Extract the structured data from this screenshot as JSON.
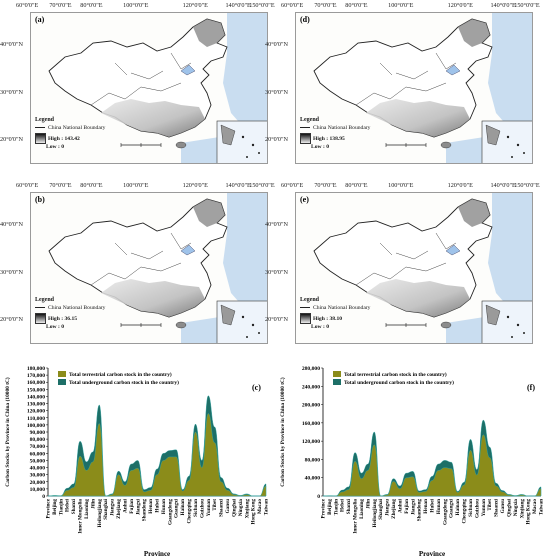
{
  "maps": [
    {
      "label": "(a)",
      "legend_title": "Legend",
      "boundary": "China National Boundary",
      "high": "High : 143.42",
      "low": "Low : 0"
    },
    {
      "label": "(d)",
      "legend_title": "Legend",
      "boundary": "China National Boundary",
      "high": "High : 138.95",
      "low": "Low : 0"
    },
    {
      "label": "(b)",
      "legend_title": "Legend",
      "boundary": "China National Boundary",
      "high": "High : 36.15",
      "low": "Low : 0"
    },
    {
      "label": "(e)",
      "legend_title": "Legend",
      "boundary": "China National Boundary",
      "high": "High : 38.10",
      "low": "Low : 0"
    }
  ],
  "map_axes": {
    "top": [
      "60°0'0\"E",
      "70°0'0\"E",
      "80°0'0\"E",
      "100°0'0\"E",
      "120°0'0\"E",
      "140°0'0\"E",
      "150°0'0\"E"
    ],
    "left": [
      "40°0'0\"N",
      "30°0'0\"N",
      "20°0'0\"N"
    ]
  },
  "colors": {
    "terrestrial": "#8b8c1a",
    "underground": "#1d6f67",
    "sea": "#c9ddf0"
  },
  "chart_data": [
    {
      "type": "area",
      "label": "(c)",
      "xlabel": "Province",
      "ylabel": "Carbon Stocks by Province in China (10000 tC)",
      "ylim": [
        0,
        180000
      ],
      "yticks": [
        "0",
        "10,000",
        "20,000",
        "30,000",
        "40,000",
        "50,000",
        "60,000",
        "70,000",
        "80,000",
        "90,000",
        "100,000",
        "110,000",
        "120,000",
        "130,000",
        "140,000",
        "150,000",
        "160,000",
        "170,000",
        "180,000"
      ],
      "categories": [
        "Province",
        "Beijing",
        "Tianjin",
        "Hebei",
        "Shanxi",
        "Inner Mongolia",
        "Liaoning",
        "Jilin",
        "Heilongjiang",
        "Shanghai",
        "Jiangsu",
        "Zhejiang",
        "Anhui",
        "Fujian",
        "Jiangxi",
        "Shandong",
        "Henan",
        "Hubei",
        "Hunan",
        "Guangdong",
        "Guangxi",
        "Hainan",
        "Chongqing",
        "Sichuan",
        "Guizhou",
        "Yunnan",
        "Tibet",
        "Shaanxi",
        "Gansu",
        "Qinghai",
        "Ningxia",
        "Xinjiang",
        "Hong Kong",
        "Macao",
        "Taiwan"
      ],
      "series": [
        {
          "name": "Total terrestrial carbon stock in the country)",
          "values": [
            0,
            500,
            300,
            8000,
            12000,
            56000,
            36000,
            48000,
            102000,
            200,
            2000,
            30000,
            15000,
            36000,
            39000,
            6000,
            8000,
            30000,
            50000,
            55000,
            55000,
            7000,
            22000,
            90000,
            40000,
            116000,
            75000,
            20000,
            8000,
            2000,
            600,
            2000,
            50,
            30,
            14000
          ]
        },
        {
          "name": "Total underground carbon stock in the country)",
          "values": [
            0,
            800,
            500,
            11000,
            17000,
            77000,
            48000,
            62000,
            128000,
            300,
            3000,
            35000,
            20000,
            45000,
            50000,
            9000,
            12000,
            38000,
            60000,
            64000,
            65000,
            9000,
            28000,
            101000,
            50000,
            141000,
            97000,
            26000,
            11000,
            3000,
            900,
            3000,
            80,
            50,
            17000
          ]
        }
      ]
    },
    {
      "type": "area",
      "label": "(f)",
      "xlabel": "Province",
      "ylabel": "Carbon Stocks by Province in China (10000 tC)",
      "ylim": [
        0,
        280000
      ],
      "yticks": [
        "0",
        "40,000",
        "80,000",
        "120,000",
        "160,000",
        "200,000",
        "240,000",
        "280,000"
      ],
      "categories": [
        "Province",
        "Beijing",
        "Tianjin",
        "Hebei",
        "Shanxi",
        "Inner Mongolia",
        "Liaoning",
        "Jilin",
        "Heilongjiang",
        "Shanghai",
        "Jiangsu",
        "Zhejiang",
        "Anhui",
        "Fujian",
        "Jiangxi",
        "Shandong",
        "Henan",
        "Hubei",
        "Hunan",
        "Guangdong",
        "Guangxi",
        "Hainan",
        "Chongqing",
        "Sichuan",
        "Guizhou",
        "Yunnan",
        "Tibet",
        "Shaanxi",
        "Gansu",
        "Qinghai",
        "Ningxia",
        "Xinjiang",
        "Hong Kong",
        "Macao",
        "Taiwan"
      ],
      "series": [
        {
          "name": "Total terrestrial carbon stock in the country)",
          "values": [
            0,
            500,
            300,
            9000,
            14000,
            76000,
            38000,
            56000,
            112000,
            200,
            2500,
            32000,
            16000,
            40000,
            42000,
            8000,
            10000,
            34000,
            56000,
            62000,
            60000,
            8000,
            24000,
            100000,
            46000,
            134000,
            84000,
            22000,
            9000,
            2500,
            700,
            2500,
            60,
            40,
            16000
          ]
        },
        {
          "name": "Total underground carbon stock in the country)",
          "values": [
            0,
            800,
            500,
            13000,
            20000,
            95000,
            50000,
            70000,
            140000,
            300,
            3500,
            38000,
            22000,
            50000,
            54000,
            11000,
            14000,
            43000,
            70000,
            78000,
            74000,
            10000,
            30000,
            124000,
            58000,
            166000,
            107000,
            28000,
            12000,
            3500,
            1000,
            3500,
            90,
            60,
            20000
          ]
        }
      ]
    }
  ]
}
